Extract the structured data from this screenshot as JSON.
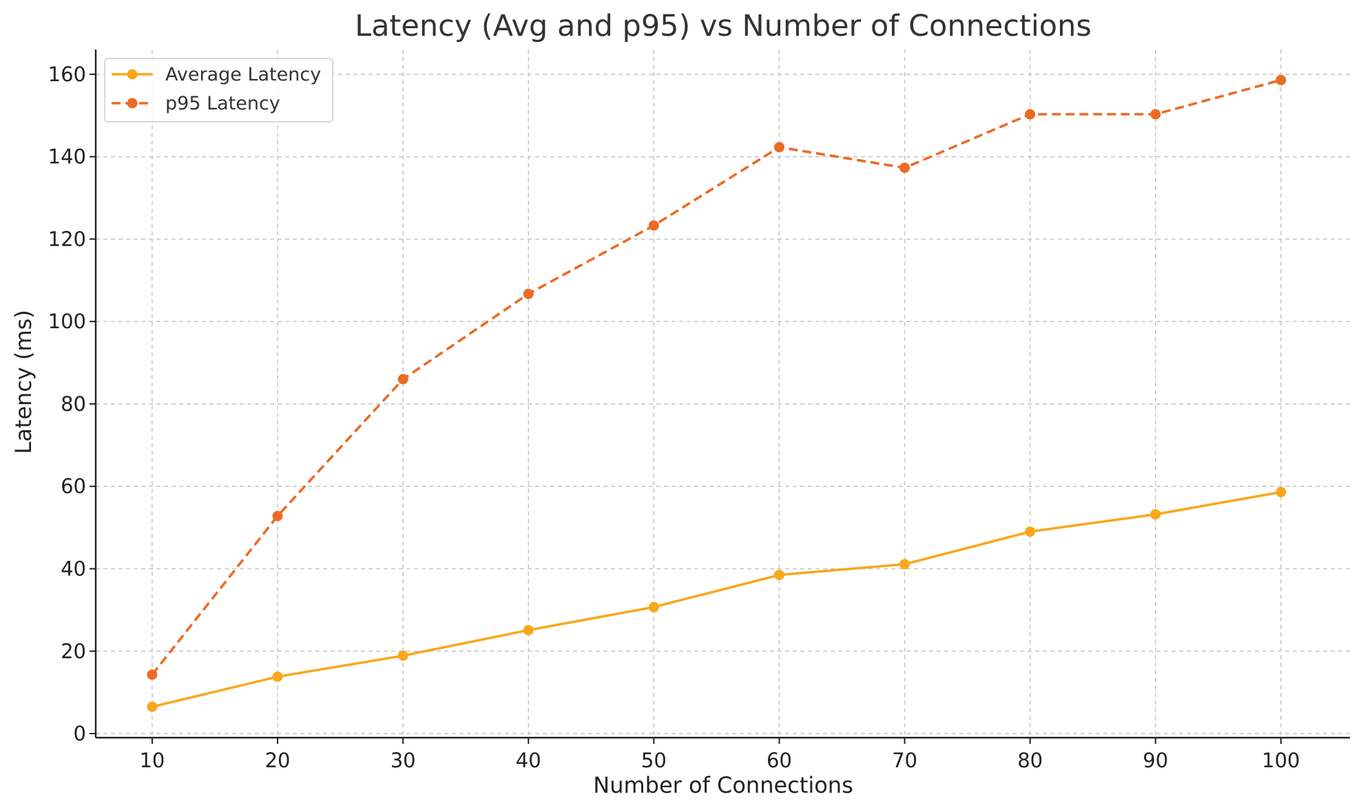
{
  "chart_data": {
    "type": "line",
    "title": "Latency (Avg and p95) vs Number of Connections",
    "xlabel": "Number of Connections",
    "ylabel": "Latency (ms)",
    "x": [
      10,
      20,
      30,
      40,
      50,
      60,
      70,
      80,
      90,
      100
    ],
    "x_ticks": [
      "10",
      "20",
      "30",
      "40",
      "50",
      "60",
      "70",
      "80",
      "90",
      "100"
    ],
    "y_ticks": [
      "0",
      "20",
      "40",
      "60",
      "80",
      "100",
      "120",
      "140",
      "160"
    ],
    "xlim": [
      5.5,
      105.5
    ],
    "ylim": [
      -1,
      166
    ],
    "grid": true,
    "legend_position": "top-left",
    "series": [
      {
        "name": "Average Latency",
        "values": [
          6.5,
          13.8,
          18.9,
          25.1,
          30.7,
          38.5,
          41.1,
          49.0,
          53.2,
          58.6
        ],
        "color": "#f9a81c",
        "line_style": "solid",
        "marker": "circle"
      },
      {
        "name": "p95 Latency",
        "values": [
          14.3,
          52.8,
          86.0,
          106.7,
          123.3,
          142.3,
          137.3,
          150.3,
          150.3,
          158.6
        ],
        "color": "#ec6b24",
        "line_style": "dashed",
        "marker": "circle"
      }
    ]
  }
}
